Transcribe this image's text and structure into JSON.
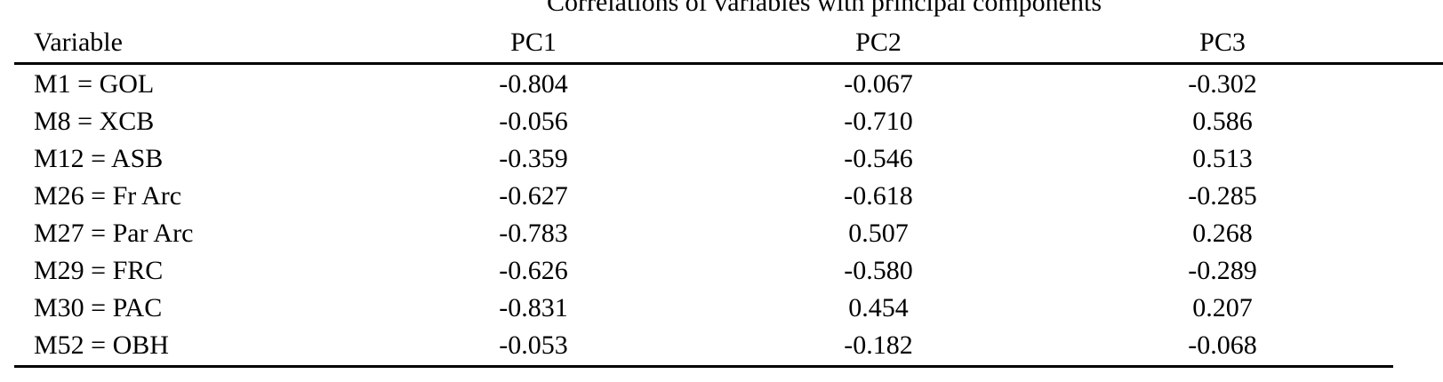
{
  "title": "Correlations of variables with principal components",
  "headers": [
    "Variable",
    "PC1",
    "PC2",
    "PC3"
  ],
  "rows": [
    [
      "M1 = GOL",
      "-0.804",
      "-0.067",
      "-0.302"
    ],
    [
      "M8 = XCB",
      "-0.056",
      "-0.710",
      "0.586"
    ],
    [
      "M12 = ASB",
      "-0.359",
      "-0.546",
      "0.513"
    ],
    [
      "M26 = Fr Arc",
      "-0.627",
      "-0.618",
      "-0.285"
    ],
    [
      "M27 = Par Arc",
      "-0.783",
      "0.507",
      "0.268"
    ],
    [
      "M29 = FRC",
      "-0.626",
      "-0.580",
      "-0.289"
    ],
    [
      "M30 = PAC",
      "-0.831",
      "0.454",
      "0.207"
    ],
    [
      "M52 = OBH",
      "-0.053",
      "-0.182",
      "-0.068"
    ]
  ]
}
